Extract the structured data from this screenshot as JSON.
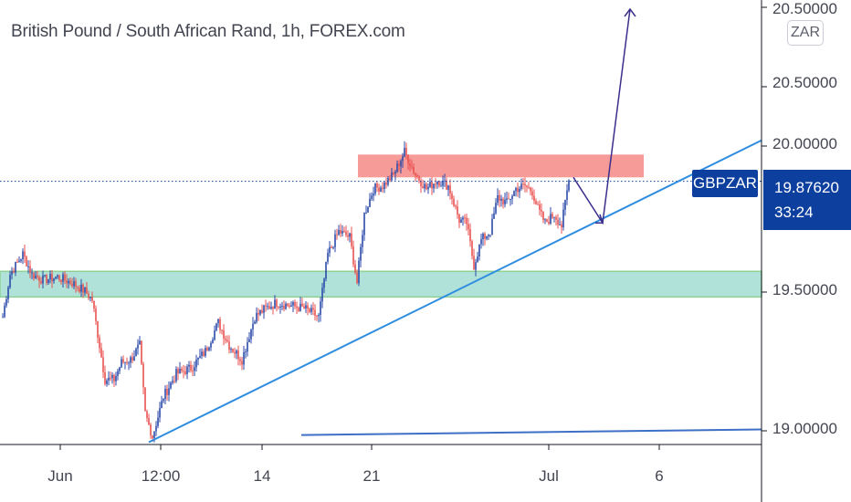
{
  "header": {
    "title": "British Pound / South African Rand, 1h, FOREX.com"
  },
  "scale": {
    "currency": "ZAR"
  },
  "chart_data": {
    "type": "candlestick",
    "symbol": "GBPZAR",
    "title": "British Pound / South African Rand, 1h, FOREX.com",
    "y_ticks": [
      "20.50000",
      "20.00000",
      "19.50000",
      "19.00000"
    ],
    "x_ticks": [
      "Jun",
      "12:00",
      "14",
      "21",
      "Jul",
      "6"
    ],
    "ylim": [
      18.93,
      20.55
    ],
    "last_price": "19.87620",
    "countdown": "33:24",
    "colors": {
      "up": "#2b4aa8",
      "down": "#e8524f",
      "trendline": "#2e8de0",
      "projection": "#3a2f8c",
      "resistance": "#f58a86",
      "support": "#7ccfc0",
      "support_border": "#44b34c",
      "price_tag": "#0d3f9e"
    },
    "price_path": [
      {
        "i": 0,
        "p": 19.4
      },
      {
        "i": 4,
        "p": 19.55
      },
      {
        "i": 11,
        "p": 19.62
      },
      {
        "i": 16,
        "p": 19.55
      },
      {
        "i": 22,
        "p": 19.53
      },
      {
        "i": 30,
        "p": 19.54
      },
      {
        "i": 38,
        "p": 19.52
      },
      {
        "i": 45,
        "p": 19.49
      },
      {
        "i": 49,
        "p": 19.46
      },
      {
        "i": 53,
        "p": 19.3
      },
      {
        "i": 56,
        "p": 19.18
      },
      {
        "i": 61,
        "p": 19.18
      },
      {
        "i": 65,
        "p": 19.24
      },
      {
        "i": 70,
        "p": 19.25
      },
      {
        "i": 75,
        "p": 19.3
      },
      {
        "i": 78,
        "p": 19.06
      },
      {
        "i": 82,
        "p": 18.98
      },
      {
        "i": 88,
        "p": 19.12
      },
      {
        "i": 95,
        "p": 19.2
      },
      {
        "i": 103,
        "p": 19.22
      },
      {
        "i": 111,
        "p": 19.28
      },
      {
        "i": 118,
        "p": 19.38
      },
      {
        "i": 124,
        "p": 19.3
      },
      {
        "i": 131,
        "p": 19.25
      },
      {
        "i": 138,
        "p": 19.4
      },
      {
        "i": 144,
        "p": 19.43
      },
      {
        "i": 150,
        "p": 19.45
      },
      {
        "i": 157,
        "p": 19.44
      },
      {
        "i": 165,
        "p": 19.43
      },
      {
        "i": 173,
        "p": 19.4
      },
      {
        "i": 178,
        "p": 19.62
      },
      {
        "i": 184,
        "p": 19.7
      },
      {
        "i": 190,
        "p": 19.68
      },
      {
        "i": 194,
        "p": 19.52
      },
      {
        "i": 198,
        "p": 19.76
      },
      {
        "i": 203,
        "p": 19.85
      },
      {
        "i": 208,
        "p": 19.86
      },
      {
        "i": 214,
        "p": 19.9
      },
      {
        "i": 220,
        "p": 19.98
      },
      {
        "i": 226,
        "p": 19.9
      },
      {
        "i": 232,
        "p": 19.85
      },
      {
        "i": 238,
        "p": 19.88
      },
      {
        "i": 244,
        "p": 19.86
      },
      {
        "i": 250,
        "p": 19.74
      },
      {
        "i": 254,
        "p": 19.73
      },
      {
        "i": 258,
        "p": 19.58
      },
      {
        "i": 262,
        "p": 19.67
      },
      {
        "i": 267,
        "p": 19.7
      },
      {
        "i": 271,
        "p": 19.82
      },
      {
        "i": 276,
        "p": 19.8
      },
      {
        "i": 281,
        "p": 19.85
      },
      {
        "i": 286,
        "p": 19.86
      },
      {
        "i": 290,
        "p": 19.84
      },
      {
        "i": 293,
        "p": 19.78
      },
      {
        "i": 297,
        "p": 19.73
      },
      {
        "i": 302,
        "p": 19.76
      },
      {
        "i": 306,
        "p": 19.72
      },
      {
        "i": 310,
        "p": 19.88
      }
    ],
    "zones": [
      {
        "kind": "resistance",
        "from": 19.89,
        "to": 19.97
      },
      {
        "kind": "support",
        "from": 19.47,
        "to": 19.56
      }
    ],
    "lines": [
      {
        "kind": "trendline",
        "x1": "10 Jun",
        "y1": 18.96,
        "x2": "8 Jul",
        "y2": 20.04
      },
      {
        "kind": "trendline",
        "x1": "16 Jun",
        "y1": 18.96,
        "x2": "8 Jul",
        "y2": 19.01
      },
      {
        "kind": "projection",
        "points": [
          [
            19.89
          ],
          [
            19.73
          ],
          [
            20.46
          ]
        ]
      }
    ],
    "pane": {
      "grid": false,
      "axis_position": "right"
    }
  }
}
